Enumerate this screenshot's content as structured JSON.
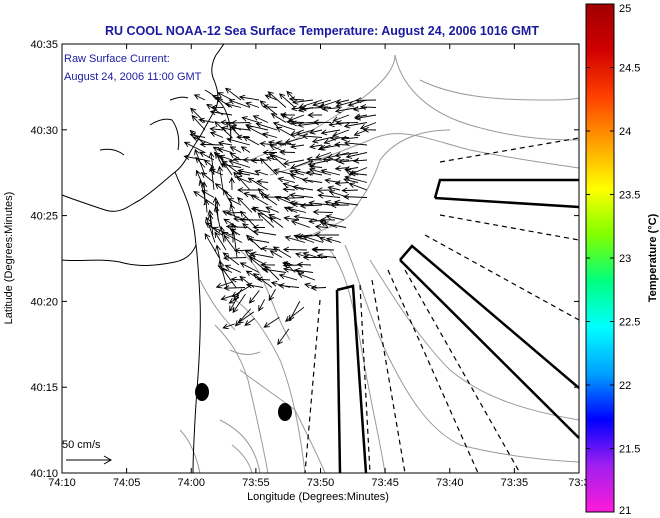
{
  "title": "RU COOL  NOAA-12  Sea Surface Temperature:  August 24, 2006 1016 GMT",
  "current_note": {
    "line1": "Raw Surface Current:",
    "line2": "August 24, 2006 11:00 GMT"
  },
  "axes": {
    "xlabel": "Longitude (Degrees:Minutes)",
    "ylabel": "Latitude (Degrees:Minutes)",
    "x_ticks": [
      "74:10",
      "74:05",
      "74:00",
      "73:55",
      "73:50",
      "73:45",
      "73:40",
      "73:35",
      "73:3"
    ],
    "y_ticks": [
      "40:35",
      "40:30",
      "40:25",
      "40:20",
      "40:15",
      "40:10"
    ]
  },
  "scale": {
    "label": "50 cm/s"
  },
  "colorbar": {
    "label": "Temperature (°C)",
    "ticks": [
      "25",
      "24.5",
      "24",
      "23.5",
      "23",
      "22.5",
      "22",
      "21.5",
      "21"
    ],
    "colors": [
      "#ff1ad9",
      "#a020f0",
      "#0000ff",
      "#00a0ff",
      "#00ffff",
      "#00ff80",
      "#80ff00",
      "#ffff00",
      "#ffa000",
      "#ff4000",
      "#d00000",
      "#a00000"
    ]
  },
  "colors": {
    "title": "#1a1aa0",
    "note": "#1a1aa0",
    "coast": "#000000",
    "bathymetry": "#9a9a9a",
    "vectors": "#000000"
  }
}
